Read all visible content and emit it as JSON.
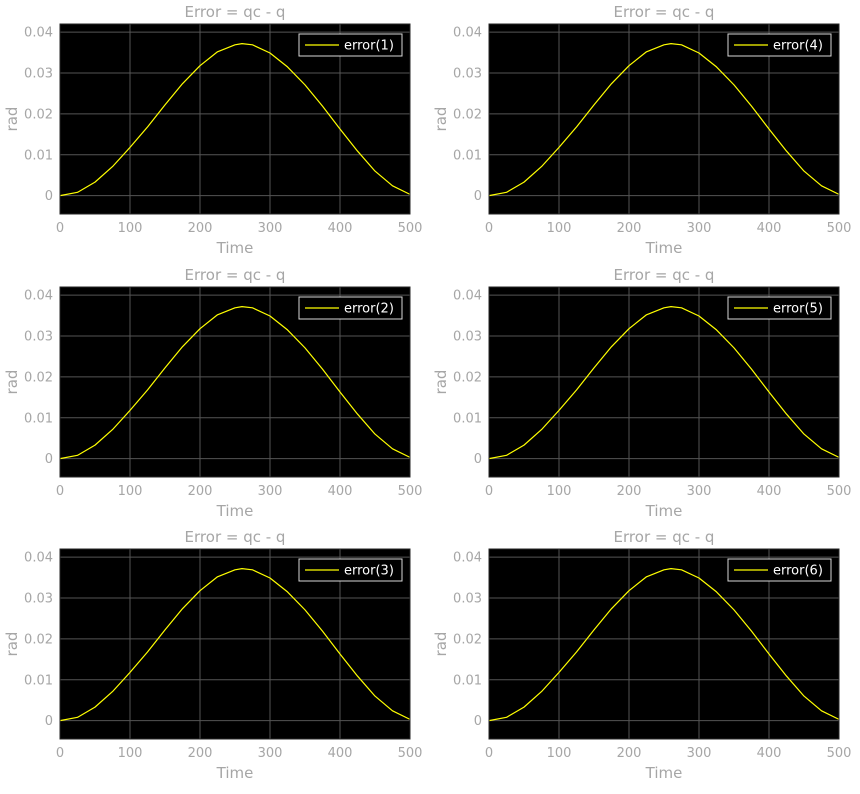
{
  "figure": {
    "background": "#ffffff",
    "axes_background": "#000000",
    "grid_color": "#555555",
    "text_color": "#a6a6a6",
    "line_color": "#ffff00",
    "legend_edge_color": "#d9d9d9",
    "legend_text_color": "#ffffff"
  },
  "chart_data": [
    {
      "type": "line",
      "title": "Error = qc - q",
      "xlabel": "Time",
      "ylabel": "rad",
      "xlim": [
        0,
        500
      ],
      "ylim": [
        -0.0045,
        0.042
      ],
      "xticks": [
        0,
        100,
        200,
        300,
        400,
        500
      ],
      "xtick_labels": [
        "0",
        "100",
        "200",
        "300",
        "400",
        "500"
      ],
      "yticks": [
        0,
        0.01,
        0.02,
        0.03,
        0.04
      ],
      "ytick_labels": [
        "0",
        "0.01",
        "0.02",
        "0.03",
        "0.04"
      ],
      "grid": true,
      "legend_position": "top-right",
      "series": [
        {
          "name": "error(1)",
          "color": "#ffff00",
          "x": [
            0,
            25,
            50,
            75,
            100,
            125,
            150,
            175,
            200,
            225,
            250,
            260,
            275,
            300,
            325,
            350,
            375,
            400,
            425,
            450,
            475,
            500
          ],
          "y": [
            0,
            0.0008,
            0.0033,
            0.0071,
            0.0118,
            0.0168,
            0.0222,
            0.0274,
            0.0318,
            0.0352,
            0.0369,
            0.0372,
            0.0369,
            0.0349,
            0.0315,
            0.0271,
            0.0219,
            0.0163,
            0.0109,
            0.006,
            0.0024,
            0.0003
          ]
        }
      ]
    },
    {
      "type": "line",
      "title": "Error = qc - q",
      "xlabel": "Time",
      "ylabel": "rad",
      "xlim": [
        0,
        500
      ],
      "ylim": [
        -0.0045,
        0.042
      ],
      "xticks": [
        0,
        100,
        200,
        300,
        400,
        500
      ],
      "xtick_labels": [
        "0",
        "100",
        "200",
        "300",
        "400",
        "500"
      ],
      "yticks": [
        0,
        0.01,
        0.02,
        0.03,
        0.04
      ],
      "ytick_labels": [
        "0",
        "0.01",
        "0.02",
        "0.03",
        "0.04"
      ],
      "grid": true,
      "legend_position": "top-right",
      "series": [
        {
          "name": "error(4)",
          "color": "#ffff00",
          "x": [
            0,
            25,
            50,
            75,
            100,
            125,
            150,
            175,
            200,
            225,
            250,
            260,
            275,
            300,
            325,
            350,
            375,
            400,
            425,
            450,
            475,
            500
          ],
          "y": [
            0,
            0.0008,
            0.0033,
            0.0071,
            0.0118,
            0.0168,
            0.0222,
            0.0274,
            0.0318,
            0.0352,
            0.0369,
            0.0372,
            0.0369,
            0.0349,
            0.0315,
            0.0271,
            0.0219,
            0.0163,
            0.0109,
            0.006,
            0.0024,
            0.0003
          ]
        }
      ]
    },
    {
      "type": "line",
      "title": "Error = qc - q",
      "xlabel": "Time",
      "ylabel": "rad",
      "xlim": [
        0,
        500
      ],
      "ylim": [
        -0.0045,
        0.042
      ],
      "xticks": [
        0,
        100,
        200,
        300,
        400,
        500
      ],
      "xtick_labels": [
        "0",
        "100",
        "200",
        "300",
        "400",
        "500"
      ],
      "yticks": [
        0,
        0.01,
        0.02,
        0.03,
        0.04
      ],
      "ytick_labels": [
        "0",
        "0.01",
        "0.02",
        "0.03",
        "0.04"
      ],
      "grid": true,
      "legend_position": "top-right",
      "series": [
        {
          "name": "error(2)",
          "color": "#ffff00",
          "x": [
            0,
            25,
            50,
            75,
            100,
            125,
            150,
            175,
            200,
            225,
            250,
            260,
            275,
            300,
            325,
            350,
            375,
            400,
            425,
            450,
            475,
            500
          ],
          "y": [
            0,
            0.0008,
            0.0033,
            0.0071,
            0.0118,
            0.0168,
            0.0222,
            0.0274,
            0.0318,
            0.0352,
            0.0369,
            0.0372,
            0.0369,
            0.0349,
            0.0315,
            0.0271,
            0.0219,
            0.0163,
            0.0109,
            0.006,
            0.0024,
            0.0003
          ]
        }
      ]
    },
    {
      "type": "line",
      "title": "Error = qc - q",
      "xlabel": "Time",
      "ylabel": "rad",
      "xlim": [
        0,
        500
      ],
      "ylim": [
        -0.0045,
        0.042
      ],
      "xticks": [
        0,
        100,
        200,
        300,
        400,
        500
      ],
      "xtick_labels": [
        "0",
        "100",
        "200",
        "300",
        "400",
        "500"
      ],
      "yticks": [
        0,
        0.01,
        0.02,
        0.03,
        0.04
      ],
      "ytick_labels": [
        "0",
        "0.01",
        "0.02",
        "0.03",
        "0.04"
      ],
      "grid": true,
      "legend_position": "top-right",
      "series": [
        {
          "name": "error(5)",
          "color": "#ffff00",
          "x": [
            0,
            25,
            50,
            75,
            100,
            125,
            150,
            175,
            200,
            225,
            250,
            260,
            275,
            300,
            325,
            350,
            375,
            400,
            425,
            450,
            475,
            500
          ],
          "y": [
            0,
            0.0008,
            0.0033,
            0.0071,
            0.0118,
            0.0168,
            0.0222,
            0.0274,
            0.0318,
            0.0352,
            0.0369,
            0.0372,
            0.0369,
            0.0349,
            0.0315,
            0.0271,
            0.0219,
            0.0163,
            0.0109,
            0.006,
            0.0024,
            0.0003
          ]
        }
      ]
    },
    {
      "type": "line",
      "title": "Error = qc - q",
      "xlabel": "Time",
      "ylabel": "rad",
      "xlim": [
        0,
        500
      ],
      "ylim": [
        -0.0045,
        0.042
      ],
      "xticks": [
        0,
        100,
        200,
        300,
        400,
        500
      ],
      "xtick_labels": [
        "0",
        "100",
        "200",
        "300",
        "400",
        "500"
      ],
      "yticks": [
        0,
        0.01,
        0.02,
        0.03,
        0.04
      ],
      "ytick_labels": [
        "0",
        "0.01",
        "0.02",
        "0.03",
        "0.04"
      ],
      "grid": true,
      "legend_position": "top-right",
      "series": [
        {
          "name": "error(3)",
          "color": "#ffff00",
          "x": [
            0,
            25,
            50,
            75,
            100,
            125,
            150,
            175,
            200,
            225,
            250,
            260,
            275,
            300,
            325,
            350,
            375,
            400,
            425,
            450,
            475,
            500
          ],
          "y": [
            0,
            0.0008,
            0.0033,
            0.0071,
            0.0118,
            0.0168,
            0.0222,
            0.0274,
            0.0318,
            0.0352,
            0.0369,
            0.0372,
            0.0369,
            0.0349,
            0.0315,
            0.0271,
            0.0219,
            0.0163,
            0.0109,
            0.006,
            0.0024,
            0.0003
          ]
        }
      ]
    },
    {
      "type": "line",
      "title": "Error = qc - q",
      "xlabel": "Time",
      "ylabel": "rad",
      "xlim": [
        0,
        500
      ],
      "ylim": [
        -0.0045,
        0.042
      ],
      "xticks": [
        0,
        100,
        200,
        300,
        400,
        500
      ],
      "xtick_labels": [
        "0",
        "100",
        "200",
        "300",
        "400",
        "500"
      ],
      "yticks": [
        0,
        0.01,
        0.02,
        0.03,
        0.04
      ],
      "ytick_labels": [
        "0",
        "0.01",
        "0.02",
        "0.03",
        "0.04"
      ],
      "grid": true,
      "legend_position": "top-right",
      "series": [
        {
          "name": "error(6)",
          "color": "#ffff00",
          "x": [
            0,
            25,
            50,
            75,
            100,
            125,
            150,
            175,
            200,
            225,
            250,
            260,
            275,
            300,
            325,
            350,
            375,
            400,
            425,
            450,
            475,
            500
          ],
          "y": [
            0,
            0.0008,
            0.0033,
            0.0071,
            0.0118,
            0.0168,
            0.0222,
            0.0274,
            0.0318,
            0.0352,
            0.0369,
            0.0372,
            0.0369,
            0.0349,
            0.0315,
            0.0271,
            0.0219,
            0.0163,
            0.0109,
            0.006,
            0.0024,
            0.0003
          ]
        }
      ]
    }
  ]
}
